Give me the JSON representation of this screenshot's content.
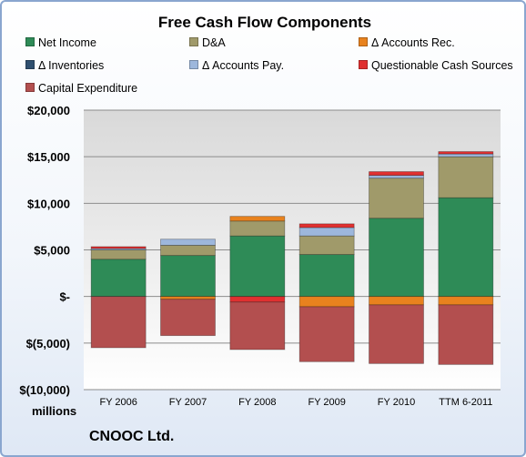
{
  "chart_data": {
    "type": "bar",
    "stacked": true,
    "title": "Free Cash Flow Components",
    "ylabel": "millions",
    "ylim": [
      -10000,
      20000
    ],
    "yticks": [
      {
        "value": 20000,
        "label": "$20,000"
      },
      {
        "value": 15000,
        "label": "$15,000"
      },
      {
        "value": 10000,
        "label": "$10,000"
      },
      {
        "value": 5000,
        "label": "$5,000"
      },
      {
        "value": 0,
        "label": "$-"
      },
      {
        "value": -5000,
        "label": "$(5,000)"
      },
      {
        "value": -10000,
        "label": "$(10,000)"
      }
    ],
    "grid": true,
    "legend_position": "top",
    "categories": [
      "FY 2006",
      "FY 2007",
      "FY 2008",
      "FY 2009",
      "FY 2010",
      "TTM 6-2011"
    ],
    "series": [
      {
        "name": "Net Income",
        "color": "#2e8b57",
        "values": [
          4000,
          4400,
          6500,
          4500,
          8400,
          10600
        ]
      },
      {
        "name": "D&A",
        "color": "#a09a6a",
        "values": [
          1000,
          1100,
          1600,
          2000,
          4300,
          4400
        ]
      },
      {
        "name": "Δ Accounts Rec.",
        "color": "#e8821e",
        "values": [
          0,
          -300,
          500,
          -1100,
          -900,
          -900
        ]
      },
      {
        "name": "Δ Inventories",
        "color": "#2f4f6f",
        "values": [
          0,
          0,
          0,
          0,
          0,
          0
        ]
      },
      {
        "name": "Δ Accounts Pay.",
        "color": "#9db7dc",
        "values": [
          150,
          650,
          0,
          900,
          300,
          300
        ]
      },
      {
        "name": "Questionable Cash Sources",
        "color": "#e03030",
        "values": [
          200,
          0,
          -600,
          400,
          400,
          250
        ]
      },
      {
        "name": "Capital Expenditure",
        "color": "#b34f4f",
        "values": [
          -5500,
          -3900,
          -5100,
          -5900,
          -6300,
          -6400
        ]
      }
    ]
  },
  "legend": {
    "rows": [
      [
        "Net Income",
        "D&A",
        "Δ Accounts Rec."
      ],
      [
        "Δ Inventories",
        "Δ Accounts Pay.",
        "Questionable Cash Sources"
      ],
      [
        "Capital Expenditure"
      ]
    ]
  },
  "company": "CNOOC Ltd."
}
